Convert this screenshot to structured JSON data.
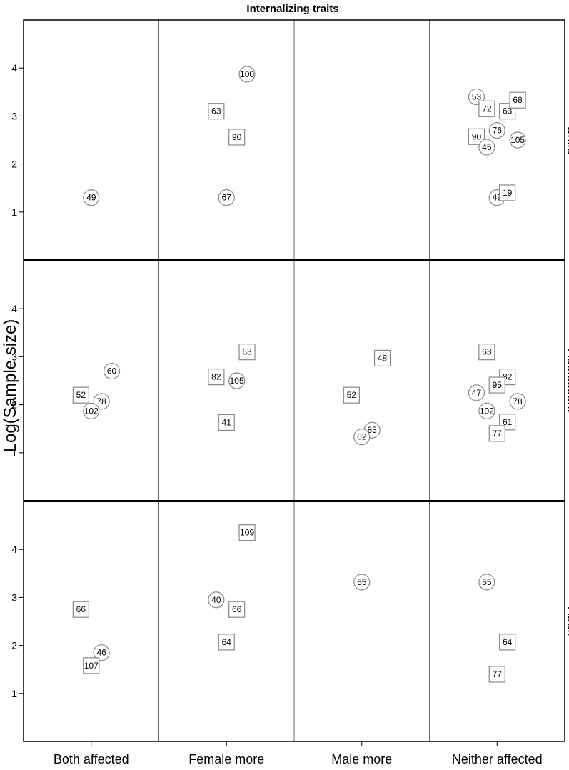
{
  "chart_data": {
    "type": "scatter",
    "title": "Internalizing traits",
    "ylabel": "Log(Sample size)",
    "xlabel": "",
    "categories": [
      "Both affected",
      "Female more",
      "Male more",
      "Neither affected"
    ],
    "rows": [
      "Child",
      "Adolescent",
      "Adult"
    ],
    "ylim": [
      0,
      5
    ],
    "yticks": [
      1,
      2,
      3,
      4
    ],
    "grid": false,
    "shapes": [
      "circle",
      "square"
    ],
    "points": [
      {
        "row": "Child",
        "category": "Both affected",
        "offset": 0.0,
        "y": 1.3,
        "label": "49",
        "shape": "circle"
      },
      {
        "row": "Child",
        "category": "Female more",
        "offset": -0.3,
        "y": 3.1,
        "label": "63",
        "shape": "square"
      },
      {
        "row": "Child",
        "category": "Female more",
        "offset": 0.6,
        "y": 3.87,
        "label": "100",
        "shape": "circle"
      },
      {
        "row": "Child",
        "category": "Female more",
        "offset": 0.3,
        "y": 2.56,
        "label": "90",
        "shape": "square"
      },
      {
        "row": "Child",
        "category": "Female more",
        "offset": 0.0,
        "y": 1.3,
        "label": "67",
        "shape": "circle"
      },
      {
        "row": "Child",
        "category": "Neither affected",
        "offset": -0.6,
        "y": 3.4,
        "label": "53",
        "shape": "circle"
      },
      {
        "row": "Child",
        "category": "Neither affected",
        "offset": -0.3,
        "y": 3.15,
        "label": "72",
        "shape": "square"
      },
      {
        "row": "Child",
        "category": "Neither affected",
        "offset": 0.3,
        "y": 3.1,
        "label": "63",
        "shape": "square"
      },
      {
        "row": "Child",
        "category": "Neither affected",
        "offset": 0.6,
        "y": 3.33,
        "label": "68",
        "shape": "square"
      },
      {
        "row": "Child",
        "category": "Neither affected",
        "offset": 0.0,
        "y": 2.7,
        "label": "76",
        "shape": "circle"
      },
      {
        "row": "Child",
        "category": "Neither affected",
        "offset": -0.6,
        "y": 2.57,
        "label": "90",
        "shape": "square"
      },
      {
        "row": "Child",
        "category": "Neither affected",
        "offset": -0.3,
        "y": 2.35,
        "label": "45",
        "shape": "circle"
      },
      {
        "row": "Child",
        "category": "Neither affected",
        "offset": 0.6,
        "y": 2.5,
        "label": "105",
        "shape": "circle"
      },
      {
        "row": "Child",
        "category": "Neither affected",
        "offset": 0.0,
        "y": 1.3,
        "label": "49",
        "shape": "circle"
      },
      {
        "row": "Child",
        "category": "Neither affected",
        "offset": 0.3,
        "y": 1.4,
        "label": "19",
        "shape": "square"
      },
      {
        "row": "Adolescent",
        "category": "Both affected",
        "offset": 0.6,
        "y": 2.7,
        "label": "60",
        "shape": "circle"
      },
      {
        "row": "Adolescent",
        "category": "Both affected",
        "offset": -0.3,
        "y": 2.2,
        "label": "52",
        "shape": "square"
      },
      {
        "row": "Adolescent",
        "category": "Both affected",
        "offset": 0.3,
        "y": 2.07,
        "label": "78",
        "shape": "circle"
      },
      {
        "row": "Adolescent",
        "category": "Both affected",
        "offset": 0.0,
        "y": 1.87,
        "label": "102",
        "shape": "circle"
      },
      {
        "row": "Adolescent",
        "category": "Female more",
        "offset": 0.6,
        "y": 3.1,
        "label": "63",
        "shape": "square"
      },
      {
        "row": "Adolescent",
        "category": "Female more",
        "offset": -0.3,
        "y": 2.58,
        "label": "82",
        "shape": "square"
      },
      {
        "row": "Adolescent",
        "category": "Female more",
        "offset": 0.3,
        "y": 2.5,
        "label": "105",
        "shape": "circle"
      },
      {
        "row": "Adolescent",
        "category": "Female more",
        "offset": 0.0,
        "y": 1.63,
        "label": "41",
        "shape": "square"
      },
      {
        "row": "Adolescent",
        "category": "Male more",
        "offset": 0.6,
        "y": 2.97,
        "label": "48",
        "shape": "square"
      },
      {
        "row": "Adolescent",
        "category": "Male more",
        "offset": -0.3,
        "y": 2.2,
        "label": "52",
        "shape": "square"
      },
      {
        "row": "Adolescent",
        "category": "Male more",
        "offset": 0.3,
        "y": 1.47,
        "label": "85",
        "shape": "circle"
      },
      {
        "row": "Adolescent",
        "category": "Male more",
        "offset": 0.0,
        "y": 1.33,
        "label": "62",
        "shape": "circle"
      },
      {
        "row": "Adolescent",
        "category": "Neither affected",
        "offset": -0.3,
        "y": 3.1,
        "label": "63",
        "shape": "square"
      },
      {
        "row": "Adolescent",
        "category": "Neither affected",
        "offset": 0.3,
        "y": 2.58,
        "label": "82",
        "shape": "square"
      },
      {
        "row": "Adolescent",
        "category": "Neither affected",
        "offset": 0.0,
        "y": 2.41,
        "label": "95",
        "shape": "square"
      },
      {
        "row": "Adolescent",
        "category": "Neither affected",
        "offset": -0.6,
        "y": 2.25,
        "label": "47",
        "shape": "circle"
      },
      {
        "row": "Adolescent",
        "category": "Neither affected",
        "offset": 0.6,
        "y": 2.07,
        "label": "78",
        "shape": "circle"
      },
      {
        "row": "Adolescent",
        "category": "Neither affected",
        "offset": -0.3,
        "y": 1.87,
        "label": "102",
        "shape": "circle"
      },
      {
        "row": "Adolescent",
        "category": "Neither affected",
        "offset": 0.3,
        "y": 1.64,
        "label": "61",
        "shape": "square"
      },
      {
        "row": "Adolescent",
        "category": "Neither affected",
        "offset": 0.0,
        "y": 1.4,
        "label": "77",
        "shape": "square"
      },
      {
        "row": "Adult",
        "category": "Both affected",
        "offset": -0.3,
        "y": 2.75,
        "label": "66",
        "shape": "square"
      },
      {
        "row": "Adult",
        "category": "Both affected",
        "offset": 0.3,
        "y": 1.85,
        "label": "46",
        "shape": "circle"
      },
      {
        "row": "Adult",
        "category": "Both affected",
        "offset": 0.0,
        "y": 1.58,
        "label": "107",
        "shape": "square"
      },
      {
        "row": "Adult",
        "category": "Female more",
        "offset": 0.6,
        "y": 4.35,
        "label": "109",
        "shape": "square"
      },
      {
        "row": "Adult",
        "category": "Female more",
        "offset": -0.3,
        "y": 2.95,
        "label": "40",
        "shape": "circle"
      },
      {
        "row": "Adult",
        "category": "Female more",
        "offset": 0.3,
        "y": 2.75,
        "label": "66",
        "shape": "square"
      },
      {
        "row": "Adult",
        "category": "Female more",
        "offset": 0.0,
        "y": 2.07,
        "label": "64",
        "shape": "square"
      },
      {
        "row": "Adult",
        "category": "Male more",
        "offset": 0.0,
        "y": 3.32,
        "label": "55",
        "shape": "circle"
      },
      {
        "row": "Adult",
        "category": "Neither affected",
        "offset": -0.3,
        "y": 3.32,
        "label": "55",
        "shape": "circle"
      },
      {
        "row": "Adult",
        "category": "Neither affected",
        "offset": 0.3,
        "y": 2.07,
        "label": "64",
        "shape": "square"
      },
      {
        "row": "Adult",
        "category": "Neither affected",
        "offset": 0.0,
        "y": 1.4,
        "label": "77",
        "shape": "square"
      }
    ]
  }
}
